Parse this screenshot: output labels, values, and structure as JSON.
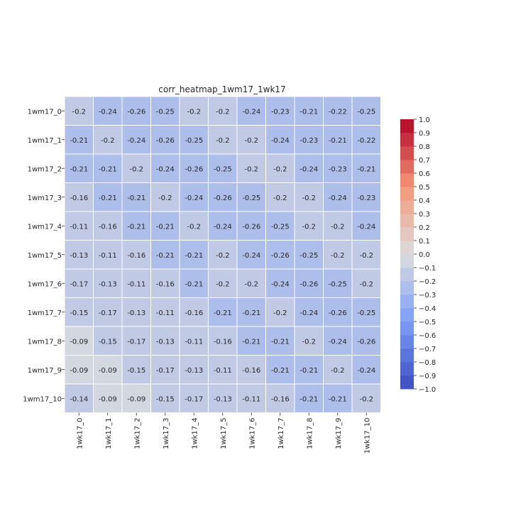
{
  "chart_data": {
    "type": "heatmap",
    "title": "corr_heatmap_1wm17_1wk17",
    "xlabel": "",
    "ylabel": "",
    "x_labels": [
      "1wk17_0",
      "1wk17_1",
      "1wk17_2",
      "1wk17_3",
      "1wk17_4",
      "1wk17_5",
      "1wk17_6",
      "1wk17_7",
      "1wk17_8",
      "1wk17_9",
      "1wk17_10"
    ],
    "y_labels": [
      "1wm17_0",
      "1wm17_1",
      "1wm17_2",
      "1wm17_3",
      "1wm17_4",
      "1wm17_5",
      "1wm17_6",
      "1wm17_7",
      "1wm17_8",
      "1wm17_9",
      "1wm17_10"
    ],
    "values": [
      [
        -0.2,
        -0.24,
        -0.26,
        -0.25,
        -0.2,
        -0.2,
        -0.24,
        -0.23,
        -0.21,
        -0.22,
        -0.25
      ],
      [
        -0.21,
        -0.2,
        -0.24,
        -0.26,
        -0.25,
        -0.2,
        -0.2,
        -0.24,
        -0.23,
        -0.21,
        -0.22
      ],
      [
        -0.21,
        -0.21,
        -0.2,
        -0.24,
        -0.26,
        -0.25,
        -0.2,
        -0.2,
        -0.24,
        -0.23,
        -0.21
      ],
      [
        -0.16,
        -0.21,
        -0.21,
        -0.2,
        -0.24,
        -0.26,
        -0.25,
        -0.2,
        -0.2,
        -0.24,
        -0.23
      ],
      [
        -0.11,
        -0.16,
        -0.21,
        -0.21,
        -0.2,
        -0.24,
        -0.26,
        -0.25,
        -0.2,
        -0.2,
        -0.24
      ],
      [
        -0.13,
        -0.11,
        -0.16,
        -0.21,
        -0.21,
        -0.2,
        -0.24,
        -0.26,
        -0.25,
        -0.2,
        -0.2
      ],
      [
        -0.17,
        -0.13,
        -0.11,
        -0.16,
        -0.21,
        -0.2,
        -0.2,
        -0.24,
        -0.26,
        -0.25,
        -0.2
      ],
      [
        -0.15,
        -0.17,
        -0.13,
        -0.11,
        -0.16,
        -0.21,
        -0.21,
        -0.2,
        -0.24,
        -0.26,
        -0.25
      ],
      [
        -0.09,
        -0.15,
        -0.17,
        -0.13,
        -0.11,
        -0.16,
        -0.21,
        -0.21,
        -0.2,
        -0.24,
        -0.26
      ],
      [
        -0.09,
        -0.09,
        -0.15,
        -0.17,
        -0.13,
        -0.11,
        -0.16,
        -0.21,
        -0.21,
        -0.2,
        -0.24
      ],
      [
        -0.14,
        -0.09,
        -0.09,
        -0.15,
        -0.17,
        -0.13,
        -0.11,
        -0.16,
        -0.21,
        -0.21,
        -0.2
      ]
    ],
    "colorbar": {
      "colormap": "coolwarm",
      "vmin": -1.0,
      "vmax": 1.0,
      "n_bins": 20,
      "ticks": [
        "1.0",
        "0.9",
        "0.8",
        "0.7",
        "0.6",
        "0.5",
        "0.4",
        "0.3",
        "0.2",
        "0.1",
        "0.0",
        "−0.1",
        "−0.2",
        "−0.3",
        "−0.4",
        "−0.5",
        "−0.6",
        "−0.7",
        "−0.8",
        "−0.9",
        "−1.0"
      ]
    },
    "annotations": true,
    "grid": false,
    "colors": {
      "low": "#3b4cc0",
      "mid": "#dddddd",
      "high": "#b40426",
      "cell_border": "#ffffff"
    }
  }
}
